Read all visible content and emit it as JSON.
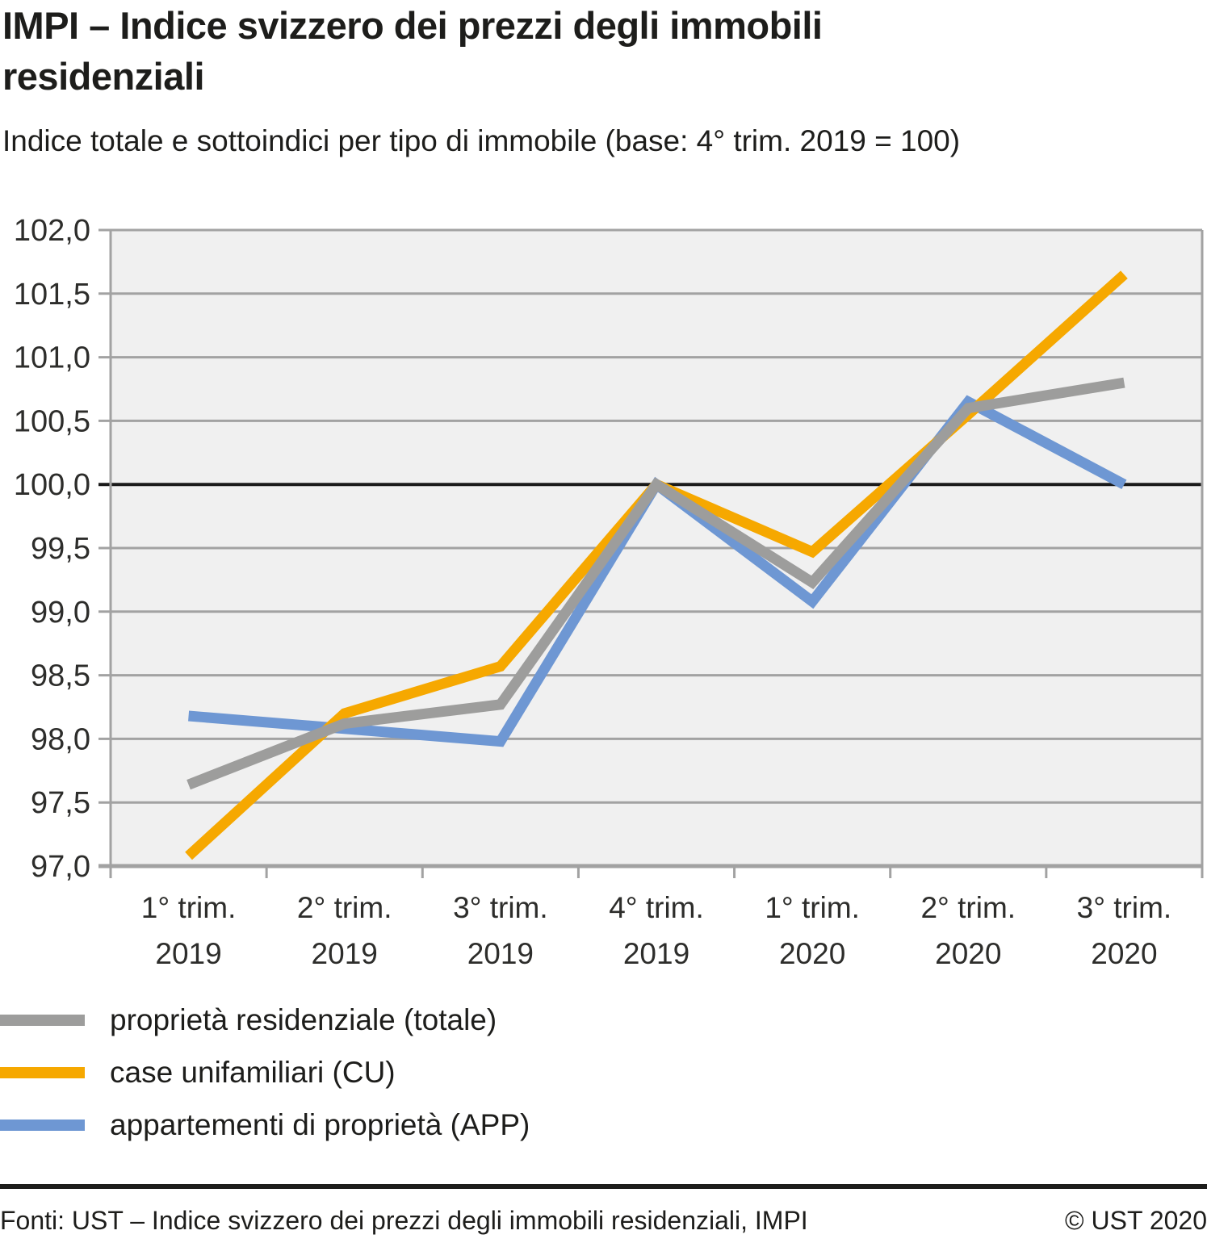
{
  "header": {
    "title": "IMPI – Indice svizzero dei prezzi degli immobili residenziali",
    "subtitle": "Indice totale e sottoindici per tipo di immobile (base: 4° trim. 2019 = 100)"
  },
  "chart_data": {
    "type": "line",
    "title": "IMPI – Indice svizzero dei prezzi degli immobili residenziali",
    "subtitle": "Indice totale e sottoindici per tipo di immobile (base: 4° trim. 2019 = 100)",
    "categories": [
      [
        "1° trim.",
        "2019"
      ],
      [
        "2° trim.",
        "2019"
      ],
      [
        "3° trim.",
        "2019"
      ],
      [
        "4° trim.",
        "2019"
      ],
      [
        "1° trim.",
        "2020"
      ],
      [
        "2° trim.",
        "2020"
      ],
      [
        "3° trim.",
        "2020"
      ]
    ],
    "y_axis": {
      "min": 97.0,
      "max": 102.0,
      "step": 0.5,
      "baseline_value": 100.0,
      "tick_labels": [
        "102,0",
        "101,5",
        "101,0",
        "100,5",
        "100,0",
        "99,5",
        "99,0",
        "98,5",
        "98,0",
        "97,5",
        "97,0"
      ]
    },
    "grid": true,
    "legend_position": "bottom-left",
    "series": [
      {
        "name": "proprietà residenziale (totale)",
        "color": "#9d9d9c",
        "values": [
          97.64,
          98.12,
          98.27,
          100.0,
          99.23,
          100.6,
          100.8
        ]
      },
      {
        "name": "case unifamiliari (CU)",
        "color": "#f6a800",
        "values": [
          97.08,
          98.2,
          98.57,
          100.0,
          99.47,
          100.55,
          101.65
        ]
      },
      {
        "name": "appartementi di proprietà (APP)",
        "color": "#6e97d3",
        "values": [
          98.18,
          98.08,
          97.98,
          100.0,
          99.08,
          100.65,
          100.0
        ]
      }
    ],
    "colors": {
      "plot_bg": "#f0f0f0",
      "gridline": "#a2a2a2",
      "baseline": "#1a1a1a"
    }
  },
  "footer": {
    "source": "Fonti: UST – Indice svizzero dei prezzi degli immobili residenziali, IMPI",
    "copyright": "© UST 2020"
  }
}
